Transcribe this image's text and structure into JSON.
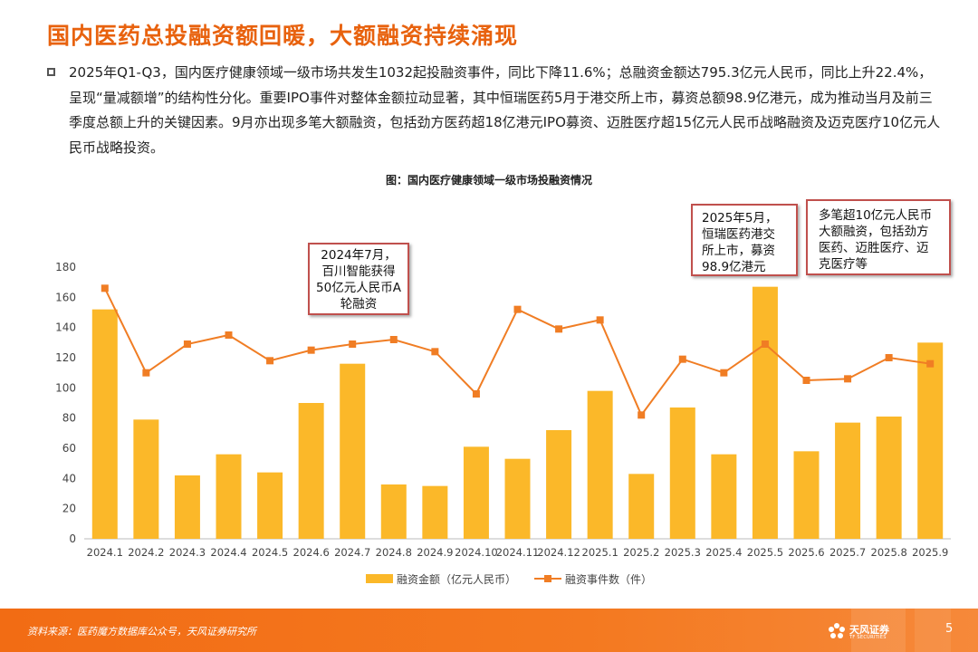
{
  "title": "国内医药总投融资额回暖，大额融资持续涌现",
  "summary": "2025年Q1-Q3，国内医疗健康领域一级市场共发生1032起投融资事件，同比下降11.6%；总融资金额达795.3亿元人民币，同比上升22.4%，呈现“量减额增”的结构性分化。重要IPO事件对整体金额拉动显著，其中恒瑞医药5月于港交所上市，募资总额98.9亿港元，成为推动当月及前三季度总额上升的关键因素。9月亦出现多笔大额融资，包括劲方医药超18亿港元IPO募资、迈胜医疗超15亿元人民币战略融资及迈克医疗10亿元人民币战略投资。",
  "chart_caption": "图：国内医疗健康领域一级市场投融资情况",
  "callouts": {
    "c1": "2024年7月，百川智能获得50亿元人民币A轮融资",
    "c2": "2025年5月，恒瑞医药港交所上市，募资98.9亿港元",
    "c3": "多笔超10亿元人民币大额融资，包括劲方医药、迈胜医疗、迈克医疗等"
  },
  "footer": {
    "source": "资料来源：医药魔方数据库公众号，天风证券研究所",
    "logo_cn": "天风证券",
    "logo_en": "TF SECURITIES",
    "page_number": "5"
  },
  "colors": {
    "title": "#E8620E",
    "bar": "#FBB829",
    "line": "#F07D24",
    "callout_border": "#C0504D",
    "footer": "#F47920"
  },
  "chart_data": {
    "type": "bar+line",
    "categories": [
      "2024.1",
      "2024.2",
      "2024.3",
      "2024.4",
      "2024.5",
      "2024.6",
      "2024.7",
      "2024.8",
      "2024.9",
      "2024.10",
      "2024.11",
      "2024.12",
      "2025.1",
      "2025.2",
      "2025.3",
      "2025.4",
      "2025.5",
      "2025.6",
      "2025.7",
      "2025.8",
      "2025.9"
    ],
    "series": [
      {
        "name": "融资金额（亿元人民币）",
        "type": "bar",
        "values": [
          152,
          79,
          42,
          56,
          44,
          90,
          116,
          36,
          35,
          61,
          53,
          72,
          98,
          43,
          87,
          56,
          167,
          58,
          77,
          81,
          130
        ]
      },
      {
        "name": "融资事件数（件）",
        "type": "line",
        "values": [
          166,
          110,
          129,
          135,
          118,
          125,
          129,
          132,
          124,
          96,
          152,
          139,
          145,
          82,
          119,
          110,
          129,
          105,
          106,
          120,
          116
        ]
      }
    ],
    "yticks": [
      0,
      20,
      40,
      60,
      80,
      100,
      120,
      140,
      160,
      180
    ],
    "ylim": [
      0,
      180
    ],
    "legend_position": "bottom",
    "grid": false
  }
}
